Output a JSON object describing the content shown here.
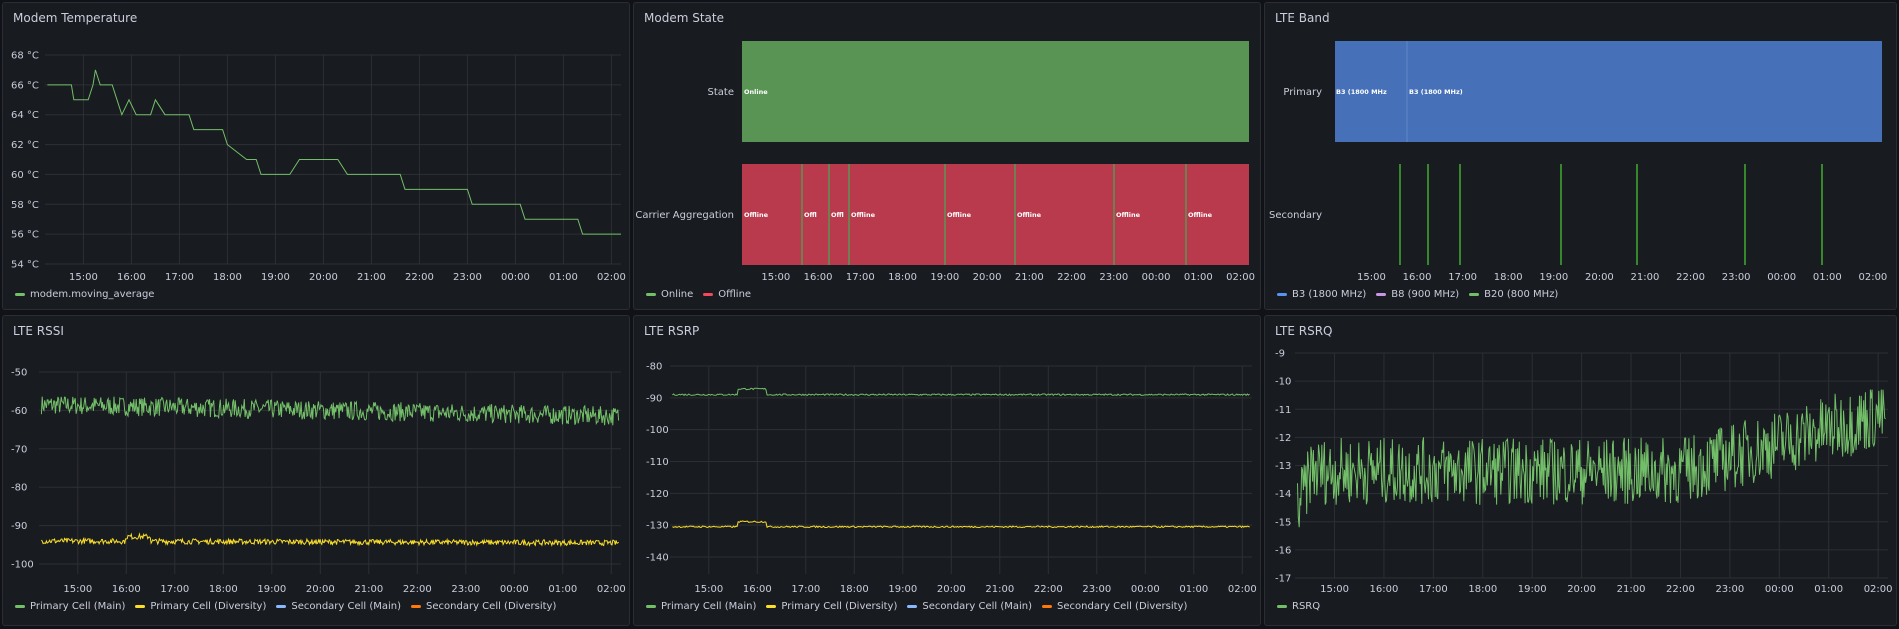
{
  "colors": {
    "green": "#73bf69",
    "yellow": "#fade2a",
    "blue": "#8ab8ff",
    "orange": "#ff780a",
    "red": "#b83a4c",
    "state_green": "#5a9454",
    "band_blue": "#4670b8",
    "purple": "#ca95e5",
    "b20_green": "#37872d",
    "axis_text": "#ccccdc",
    "grid": "#2c3035"
  },
  "time_labels": [
    "15:00",
    "16:00",
    "17:00",
    "18:00",
    "19:00",
    "20:00",
    "21:00",
    "22:00",
    "23:00",
    "00:00",
    "01:00",
    "02:00"
  ],
  "panels": {
    "modem_temperature": {
      "title": "Modem Temperature",
      "y_ticks": [
        "68 °C",
        "66 °C",
        "64 °C",
        "62 °C",
        "60 °C",
        "58 °C",
        "56 °C",
        "54 °C"
      ],
      "legend": [
        {
          "label": "modem.moving_average",
          "color": "#73bf69"
        }
      ]
    },
    "modem_state": {
      "title": "Modem State",
      "rows": [
        "State",
        "Carrier Aggregation"
      ],
      "state_label": "Online",
      "ca_labels": [
        "Offline",
        "Offl",
        "Offl",
        "Offline",
        "Offline",
        "Offline",
        "Offline",
        "Offline"
      ],
      "legend": [
        {
          "label": "Online",
          "color": "#73bf69"
        },
        {
          "label": "Offline",
          "color": "#f2495c"
        }
      ]
    },
    "lte_band": {
      "title": "LTE Band",
      "rows": [
        "Primary",
        "Secondary"
      ],
      "primary_labels": [
        "B3 (1800 MHz",
        "B3 (1800 MHz)"
      ],
      "legend": [
        {
          "label": "B3 (1800 MHz)",
          "color": "#5794f2"
        },
        {
          "label": "B8 (900 MHz)",
          "color": "#ca95e5"
        },
        {
          "label": "B20 (800 MHz)",
          "color": "#73bf69"
        }
      ]
    },
    "lte_rssi": {
      "title": "LTE RSSI",
      "y_ticks": [
        "-50",
        "-60",
        "-70",
        "-80",
        "-90",
        "-100"
      ],
      "legend": [
        {
          "label": "Primary Cell (Main)",
          "color": "#73bf69"
        },
        {
          "label": "Primary Cell (Diversity)",
          "color": "#fade2a"
        },
        {
          "label": "Secondary Cell (Main)",
          "color": "#8ab8ff"
        },
        {
          "label": "Secondary Cell (Diversity)",
          "color": "#ff780a"
        }
      ]
    },
    "lte_rsrp": {
      "title": "LTE RSRP",
      "y_ticks": [
        "-80",
        "-90",
        "-100",
        "-110",
        "-120",
        "-130",
        "-140"
      ],
      "legend": [
        {
          "label": "Primary Cell (Main)",
          "color": "#73bf69"
        },
        {
          "label": "Primary Cell (Diversity)",
          "color": "#fade2a"
        },
        {
          "label": "Secondary Cell (Main)",
          "color": "#8ab8ff"
        },
        {
          "label": "Secondary Cell (Diversity)",
          "color": "#ff780a"
        }
      ]
    },
    "lte_rsrq": {
      "title": "LTE RSRQ",
      "y_ticks": [
        "-9",
        "-10",
        "-11",
        "-12",
        "-13",
        "-14",
        "-15",
        "-16",
        "-17"
      ],
      "legend": [
        {
          "label": "RSRQ",
          "color": "#73bf69"
        }
      ]
    }
  },
  "chart_data": [
    {
      "type": "line",
      "title": "Modem Temperature",
      "ylim": [
        54,
        68
      ],
      "series": [
        {
          "name": "modem.moving_average",
          "points": [
            [
              14.25,
              66
            ],
            [
              14.75,
              66
            ],
            [
              14.8,
              65
            ],
            [
              15.1,
              65
            ],
            [
              15.2,
              66
            ],
            [
              15.25,
              67
            ],
            [
              15.35,
              66
            ],
            [
              15.6,
              66
            ],
            [
              15.7,
              65
            ],
            [
              15.8,
              64
            ],
            [
              15.95,
              65
            ],
            [
              16.1,
              64
            ],
            [
              16.4,
              64
            ],
            [
              16.5,
              65
            ],
            [
              16.7,
              64
            ],
            [
              17.2,
              64
            ],
            [
              17.3,
              63
            ],
            [
              17.9,
              63
            ],
            [
              18.0,
              62
            ],
            [
              18.4,
              61
            ],
            [
              18.6,
              61
            ],
            [
              18.7,
              60
            ],
            [
              19.0,
              60
            ],
            [
              19.3,
              60
            ],
            [
              19.5,
              61
            ],
            [
              20.3,
              61
            ],
            [
              20.5,
              60
            ],
            [
              21.6,
              60
            ],
            [
              21.7,
              59
            ],
            [
              23.0,
              59
            ],
            [
              23.1,
              58
            ],
            [
              24.1,
              58
            ],
            [
              24.2,
              57
            ],
            [
              25.3,
              57
            ],
            [
              25.4,
              56
            ],
            [
              26.2,
              56
            ]
          ]
        }
      ]
    },
    {
      "type": "line",
      "title": "LTE RSSI",
      "ylim": [
        -100,
        -45
      ],
      "series": [
        {
          "name": "Primary Cell (Main)",
          "mean": -58.5,
          "end": -62
        },
        {
          "name": "Primary Cell (Diversity)",
          "mean": -94,
          "end": -94.5
        }
      ]
    },
    {
      "type": "line",
      "title": "LTE RSRP",
      "ylim": [
        -140,
        -80
      ],
      "series": [
        {
          "name": "Primary Cell (Main)",
          "mean": -89
        },
        {
          "name": "Primary Cell (Diversity)",
          "mean": -130.5
        }
      ]
    },
    {
      "type": "line",
      "title": "LTE RSRQ",
      "ylim": [
        -17,
        -9
      ],
      "series": [
        {
          "name": "RSRQ",
          "start": -14,
          "end": -11
        }
      ]
    }
  ]
}
